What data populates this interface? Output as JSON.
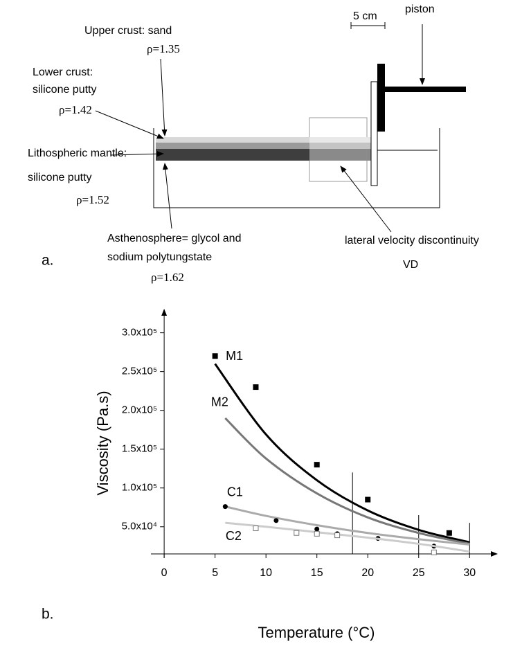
{
  "diagram": {
    "panel_label": "a.",
    "upper_crust": "Upper crust: sand",
    "upper_crust_density": "ρ=1.35",
    "lower_crust_1": "Lower crust:",
    "lower_crust_2": "silicone putty",
    "lower_crust_density": "ρ=1.42",
    "mantle_1": "Lithospheric mantle:",
    "mantle_2": "silicone putty",
    "mantle_density": "ρ=1.52",
    "asthenosphere_1": "Asthenosphere= glycol and",
    "asthenosphere_2": "sodium polytungstate",
    "asthenosphere_density": "ρ=1.62",
    "scale": "5 cm",
    "piston": "piston",
    "discontinuity": "lateral velocity discontinuity",
    "discontinuity_abbr": "VD"
  },
  "chart_data": {
    "type": "scatter",
    "panel_label": "b.",
    "x_label": "Temperature (°C)",
    "y_label": "Viscosity (Pa.s)",
    "xlim": [
      -1.3,
      32.7
    ],
    "ylim": [
      15000,
      330000
    ],
    "xticks": [
      0,
      5,
      10,
      15,
      20,
      25,
      30
    ],
    "yticks": [
      {
        "value": 50000,
        "label": "5.0x10⁴"
      },
      {
        "value": 100000,
        "label": "1.0x10⁵"
      },
      {
        "value": 150000,
        "label": "1.5x10⁵"
      },
      {
        "value": 200000,
        "label": "2.0x10⁵"
      },
      {
        "value": 250000,
        "label": "2.5x10⁵"
      },
      {
        "value": 300000,
        "label": "3.0x10⁵"
      }
    ],
    "series": [
      {
        "name": "M1",
        "color": "#000000",
        "marker": "square",
        "x": [
          5,
          9,
          15,
          20,
          28
        ],
        "values": [
          270000,
          230000,
          130000,
          85000,
          42000
        ],
        "fit_x": [
          5,
          10,
          15,
          20,
          25,
          30
        ],
        "fit": [
          260000,
          169000,
          110000,
          71000,
          46000,
          30000
        ]
      },
      {
        "name": "M2",
        "color": "#777777",
        "fit_x": [
          6,
          10,
          15,
          20,
          25,
          30
        ],
        "fit": [
          190000,
          138000,
          93000,
          62000,
          42000,
          28000
        ]
      },
      {
        "name": "C1",
        "color": "#aaaaaa",
        "marker": "circle",
        "x": [
          6,
          11,
          15,
          17,
          21,
          26.5
        ],
        "values": [
          76000,
          58000,
          47000,
          41000,
          35000,
          25000
        ],
        "fit_x": [
          6,
          10,
          15,
          20,
          25,
          30
        ],
        "fit": [
          76000,
          64000,
          52000,
          42000,
          34000,
          27000
        ]
      },
      {
        "name": "C2",
        "color": "#cccccc",
        "marker": "open-square",
        "x": [
          9,
          13,
          15,
          17,
          26.5
        ],
        "values": [
          48000,
          42000,
          41000,
          39000,
          17000
        ],
        "fit_x": [
          6,
          10,
          15,
          20,
          25,
          30
        ],
        "fit": [
          55000,
          50000,
          43000,
          36000,
          28000,
          18000
        ]
      }
    ],
    "vertical_lines": [
      {
        "x": 18.5,
        "top": 120000
      },
      {
        "x": 25,
        "top": 65000
      },
      {
        "x": 30,
        "top": 55000
      }
    ]
  }
}
